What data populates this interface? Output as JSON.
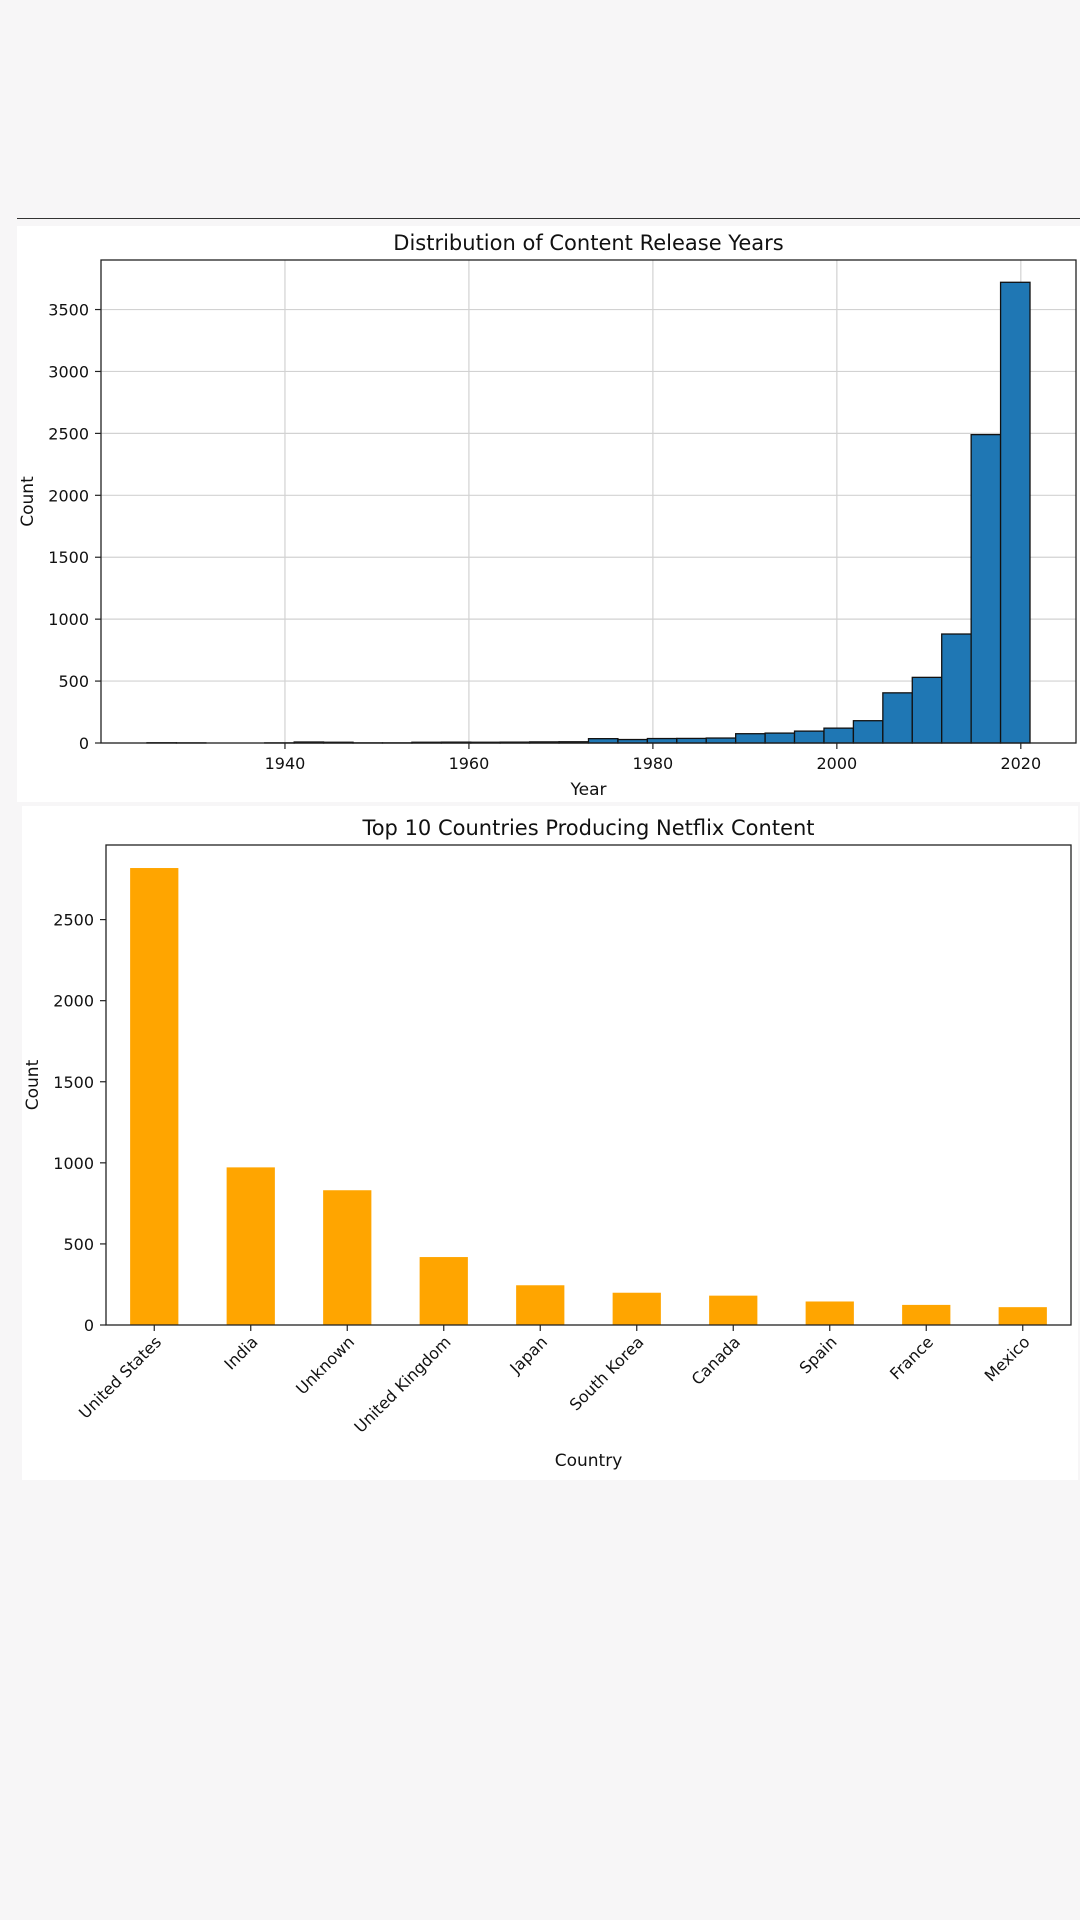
{
  "chart_data": [
    {
      "type": "bar",
      "kind": "histogram",
      "title": "Distribution of Content Release Years",
      "xlabel": "Year",
      "ylabel": "Count",
      "xlim": [
        1920,
        2026
      ],
      "ylim": [
        0,
        3900
      ],
      "xticks": [
        1940,
        1960,
        1980,
        2000,
        2020
      ],
      "yticks": [
        0,
        500,
        1000,
        1500,
        2000,
        2500,
        3000,
        3500
      ],
      "grid": true,
      "bar_color": "#1f77b4",
      "edge_color": "#111111",
      "bins": [
        {
          "start": 1925.0,
          "end": 1928.2,
          "count": 2
        },
        {
          "start": 1928.2,
          "end": 1931.4,
          "count": 1
        },
        {
          "start": 1931.4,
          "end": 1934.6,
          "count": 0
        },
        {
          "start": 1934.6,
          "end": 1937.8,
          "count": 0
        },
        {
          "start": 1937.8,
          "end": 1941.0,
          "count": 1
        },
        {
          "start": 1941.0,
          "end": 1944.2,
          "count": 8
        },
        {
          "start": 1944.2,
          "end": 1947.4,
          "count": 6
        },
        {
          "start": 1947.4,
          "end": 1950.6,
          "count": 1
        },
        {
          "start": 1950.6,
          "end": 1953.8,
          "count": 1
        },
        {
          "start": 1953.8,
          "end": 1957.0,
          "count": 6
        },
        {
          "start": 1957.0,
          "end": 1960.2,
          "count": 7
        },
        {
          "start": 1960.2,
          "end": 1963.4,
          "count": 6
        },
        {
          "start": 1963.4,
          "end": 1966.6,
          "count": 7
        },
        {
          "start": 1966.6,
          "end": 1969.8,
          "count": 9
        },
        {
          "start": 1969.8,
          "end": 1973.0,
          "count": 10
        },
        {
          "start": 1973.0,
          "end": 1976.2,
          "count": 35
        },
        {
          "start": 1976.2,
          "end": 1979.4,
          "count": 28
        },
        {
          "start": 1979.4,
          "end": 1982.6,
          "count": 36
        },
        {
          "start": 1982.6,
          "end": 1985.8,
          "count": 37
        },
        {
          "start": 1985.8,
          "end": 1989.0,
          "count": 40
        },
        {
          "start": 1989.0,
          "end": 1992.2,
          "count": 75
        },
        {
          "start": 1992.2,
          "end": 1995.4,
          "count": 80
        },
        {
          "start": 1995.4,
          "end": 1998.6,
          "count": 96
        },
        {
          "start": 1998.6,
          "end": 2001.8,
          "count": 120
        },
        {
          "start": 2001.8,
          "end": 2005.0,
          "count": 180
        },
        {
          "start": 2005.0,
          "end": 2008.2,
          "count": 405
        },
        {
          "start": 2008.2,
          "end": 2011.4,
          "count": 530
        },
        {
          "start": 2011.4,
          "end": 2014.6,
          "count": 880
        },
        {
          "start": 2014.6,
          "end": 2017.8,
          "count": 2490
        },
        {
          "start": 2017.8,
          "end": 2021.0,
          "count": 3720
        }
      ]
    },
    {
      "type": "bar",
      "title": "Top 10 Countries Producing Netflix Content",
      "xlabel": "Country",
      "ylabel": "Count",
      "ylim": [
        0,
        2960
      ],
      "yticks": [
        0,
        500,
        1000,
        1500,
        2000,
        2500
      ],
      "grid": false,
      "bar_color": "#ffa500",
      "categories": [
        "United States",
        "India",
        "Unknown",
        "United Kingdom",
        "Japan",
        "South Korea",
        "Canada",
        "Spain",
        "France",
        "Mexico"
      ],
      "values": [
        2818,
        972,
        831,
        419,
        245,
        199,
        181,
        145,
        124,
        110
      ]
    }
  ]
}
